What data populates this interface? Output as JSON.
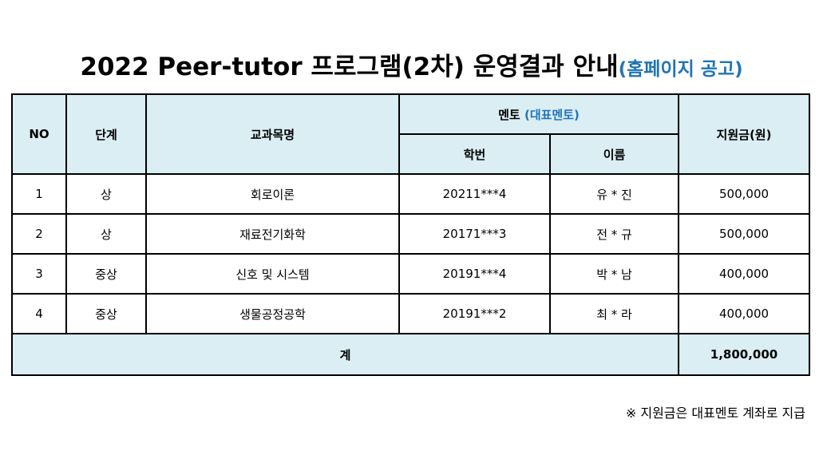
{
  "title": {
    "main": "2022 Peer-tutor 프로그램(2차) 운영결과 안내",
    "suffix": "(홈페이지 공고)"
  },
  "table": {
    "headers": {
      "no": "NO",
      "level": "단계",
      "subject": "교과목명",
      "mentor": "멘토",
      "mentor_note": "(대표멘토)",
      "student_id": "학번",
      "name": "이름",
      "amount": "지원금(원)"
    },
    "rows": [
      {
        "no": "1",
        "level": "상",
        "subject": "회로이론",
        "student_id": "20211***4",
        "name": "유 * 진",
        "amount": "500,000"
      },
      {
        "no": "2",
        "level": "상",
        "subject": "재료전기화학",
        "student_id": "20171***3",
        "name": "전 * 규",
        "amount": "500,000"
      },
      {
        "no": "3",
        "level": "중상",
        "subject": "신호 및 시스템",
        "student_id": "20191***4",
        "name": "박 * 남",
        "amount": "400,000"
      },
      {
        "no": "4",
        "level": "중상",
        "subject": "생물공정공학",
        "student_id": "20191***2",
        "name": "최 * 라",
        "amount": "400,000"
      }
    ],
    "total": {
      "label": "계",
      "amount": "1,800,000"
    }
  },
  "footnote": "※ 지원금은 대표멘토 계좌로 지급",
  "colors": {
    "header_bg": "#daeef3",
    "accent_blue": "#1f74b8",
    "border": "#000000"
  }
}
